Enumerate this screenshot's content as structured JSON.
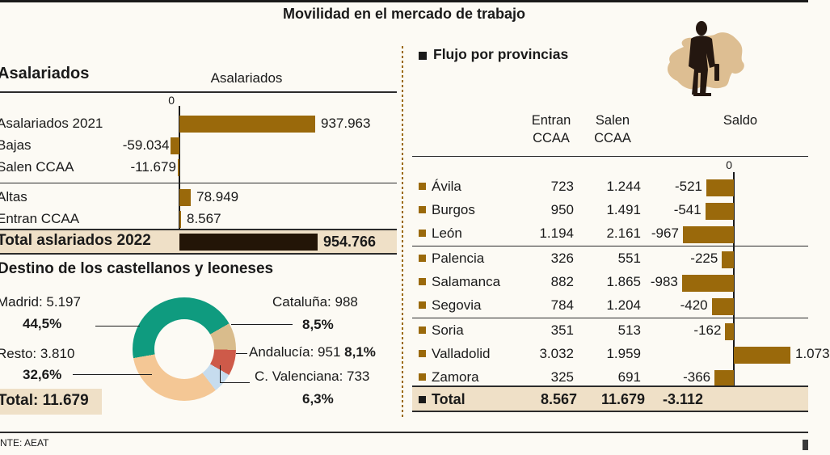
{
  "title": "Movilidad en el mercado de trabajo",
  "source": "NTE: AEAT",
  "flujo_section_title": "Flujo por provincias",
  "colors": {
    "bar": "#9A690B",
    "bar_dark": "#231507",
    "beige": "#EFE0C7",
    "teal": "#0F9B7F",
    "tan": "#D9BC8C",
    "red": "#CE5A49",
    "light_blue": "#C6DCEE",
    "peach": "#F4C795",
    "map_tan": "#DDBE92",
    "silhouette": "#241710"
  },
  "chart_data": [
    {
      "type": "bar",
      "title": "Asalariados",
      "column_header": "Asalariados",
      "axis_zero_label": "0",
      "rows": [
        {
          "label": "Asalariados 2021",
          "value": 937963,
          "value_label": "937.963"
        },
        {
          "label": "Bajas",
          "value": -59034,
          "value_label": "-59.034"
        },
        {
          "label": "Salen CCAA",
          "value": -11679,
          "value_label": "-11.679"
        },
        {
          "label": "Altas",
          "value": 78949,
          "value_label": "78.949"
        },
        {
          "label": "Entran CCAA",
          "value": 8567,
          "value_label": "8.567"
        }
      ],
      "total": {
        "label": "Total aslariados 2022",
        "value": 954766,
        "value_label": "954.766"
      }
    },
    {
      "type": "pie",
      "title": "Destino de los castellanos y leoneses",
      "start_angle_deg": 260,
      "segments": [
        {
          "label": "Madrid",
          "value": 5197,
          "count_label": "Madrid: 5.197",
          "pct": 44.5,
          "pct_label": "44,5%",
          "color_key": "teal"
        },
        {
          "label": "Cataluña",
          "value": 988,
          "count_label": "Cataluña: 988",
          "pct": 8.5,
          "pct_label": "8,5%",
          "color_key": "tan"
        },
        {
          "label": "Andalucía",
          "value": 951,
          "count_label": "Andalucía: 951",
          "pct": 8.1,
          "pct_label": "8,1%",
          "color_key": "red"
        },
        {
          "label": "C. Valenciana",
          "value": 733,
          "count_label": "C. Valenciana: 733",
          "pct": 6.3,
          "pct_label": "6,3%",
          "color_key": "light_blue"
        },
        {
          "label": "Resto",
          "value": 3810,
          "count_label": "Resto: 3.810",
          "pct": 32.6,
          "pct_label": "32,6%",
          "color_key": "peach"
        }
      ],
      "total_label": "Total: 11.679"
    },
    {
      "type": "table",
      "title": "Flujo por provincias",
      "axis_zero_label": "0",
      "columns": [
        {
          "l1": "Entran",
          "l2": "CCAA"
        },
        {
          "l1": "Salen",
          "l2": "CCAA"
        },
        {
          "l1": "Saldo",
          "l2": ""
        }
      ],
      "rows": [
        {
          "label": "Ávila",
          "entran": "723",
          "salen": "1.244",
          "saldo": -521,
          "saldo_label": "-521"
        },
        {
          "label": "Burgos",
          "entran": "950",
          "salen": "1.491",
          "saldo": -541,
          "saldo_label": "-541"
        },
        {
          "label": "León",
          "entran": "1.194",
          "salen": "2.161",
          "saldo": -967,
          "saldo_label": "-967"
        },
        {
          "label": "Palencia",
          "entran": "326",
          "salen": "551",
          "saldo": -225,
          "saldo_label": "-225"
        },
        {
          "label": "Salamanca",
          "entran": "882",
          "salen": "1.865",
          "saldo": -983,
          "saldo_label": "-983"
        },
        {
          "label": "Segovia",
          "entran": "784",
          "salen": "1.204",
          "saldo": -420,
          "saldo_label": "-420"
        },
        {
          "label": "Soria",
          "entran": "351",
          "salen": "513",
          "saldo": -162,
          "saldo_label": "-162"
        },
        {
          "label": "Valladolid",
          "entran": "3.032",
          "salen": "1.959",
          "saldo": 1073,
          "saldo_label": "1.073"
        },
        {
          "label": "Zamora",
          "entran": "325",
          "salen": "691",
          "saldo": -366,
          "saldo_label": "-366"
        }
      ],
      "total": {
        "label": "Total",
        "entran": "8.567",
        "salen": "11.679",
        "saldo_label": "-3.112"
      }
    }
  ]
}
